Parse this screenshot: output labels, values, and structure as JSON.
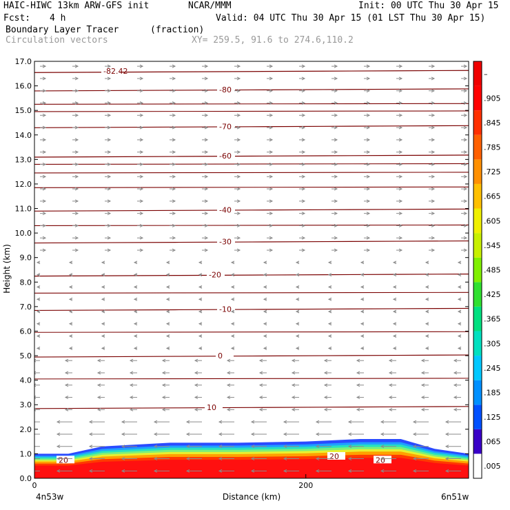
{
  "header": {
    "title_left": "HAIC-HIWC 13km ARW-GFS init",
    "org": "NCAR/MMM",
    "init": "Init: 00 UTC Thu 30 Apr 15",
    "fcst_label": "Fcst:",
    "fcst_value": "4 h",
    "valid": "Valid: 04 UTC Thu 30 Apr 15 (01 LST Thu 30 Apr 15)",
    "field1": "Boundary Layer Tracer",
    "field1_units": "(fraction)",
    "field2": "Circulation vectors",
    "xy": "XY= 259.5, 91.6 to 274.6,110.2"
  },
  "chart_data": {
    "type": "heatmap",
    "xlabel": "Distance (km)",
    "ylabel": "Height (km)",
    "ylim": [
      0,
      17
    ],
    "xlim": [
      0,
      320
    ],
    "y_ticks": [
      "0.0",
      "1.0",
      "2.0",
      "3.0",
      "4.0",
      "5.0",
      "6.0",
      "7.0",
      "8.0",
      "9.0",
      "10.0",
      "11.0",
      "12.0",
      "13.0",
      "14.0",
      "15.0",
      "16.0",
      "17.0"
    ],
    "x_ticks": [
      {
        "value": 0,
        "label": "0"
      },
      {
        "value": 200,
        "label": "200"
      }
    ],
    "x_end_labels": {
      "left": "4n53w",
      "right": "6n51w"
    },
    "colorbar_labels": [
      ".005",
      ".065",
      ".125",
      ".185",
      ".245",
      ".305",
      ".365",
      ".425",
      ".485",
      ".545",
      ".605",
      ".665",
      ".725",
      ".785",
      ".845",
      ".905",
      "–"
    ],
    "temperature_contours": [
      {
        "label": "-82.42",
        "y": 16.6
      },
      {
        "label": "-80",
        "y": 15.85
      },
      {
        "label": "-70",
        "y": 14.35
      },
      {
        "label": "-60",
        "y": 13.15
      },
      {
        "label": "-40",
        "y": 10.95
      },
      {
        "label": "-30",
        "y": 9.65
      },
      {
        "label": "-20",
        "y": 8.3
      },
      {
        "label": "-10",
        "y": 6.9
      },
      {
        "label": "0",
        "y": 5.0
      },
      {
        "label": "10",
        "y": 2.9
      },
      {
        "label": "20",
        "y": 0.75
      },
      {
        "label": "20",
        "y": 0.9
      },
      {
        "label": "20",
        "y": 0.75
      }
    ],
    "tracer_layer": {
      "top_km": [
        1.0,
        1.0,
        1.3,
        1.45,
        1.45,
        1.5,
        1.6,
        1.6,
        1.2,
        1.0
      ],
      "x_km": [
        0,
        25,
        50,
        100,
        150,
        200,
        240,
        270,
        295,
        320
      ]
    },
    "vectors": "circulation vectors, mostly westward below 5 km and eastward above 10 km"
  },
  "colors": {
    "contour": "#7a0000",
    "vector": "#8a8a8a"
  }
}
